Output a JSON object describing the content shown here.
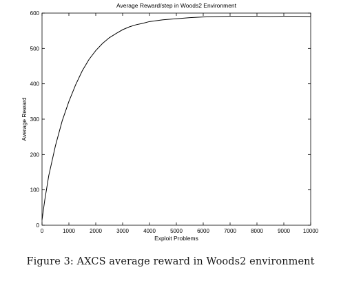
{
  "chart_data": {
    "type": "line",
    "title": "Average Reward/step in Woods2 Environment",
    "xlabel": "Exploit Problems",
    "ylabel": "Average Reward",
    "xlim": [
      0,
      10000
    ],
    "ylim": [
      0,
      600
    ],
    "xticks": [
      0,
      1000,
      2000,
      3000,
      4000,
      5000,
      6000,
      7000,
      8000,
      9000,
      10000
    ],
    "yticks": [
      0,
      100,
      200,
      300,
      400,
      500,
      600
    ],
    "grid": false,
    "legend": "none",
    "line_color": "#000000",
    "series": [
      {
        "x": [
          0,
          100,
          250,
          500,
          750,
          1000,
          1250,
          1500,
          1750,
          2000,
          2250,
          2500,
          2750,
          3000,
          3250,
          3500,
          3750,
          4000,
          4500,
          5000,
          5500,
          6000,
          6500,
          7000,
          7500,
          8000,
          8500,
          9000,
          9500,
          10000
        ],
        "y": [
          15,
          70,
          140,
          225,
          295,
          350,
          397,
          437,
          469,
          494,
          514,
          530,
          542,
          553,
          561,
          567,
          571,
          576,
          581,
          584,
          587,
          589,
          590,
          591,
          591,
          591,
          590,
          591,
          591,
          590
        ]
      }
    ]
  },
  "caption": "Figure 3: AXCS average reward in Woods2 environment"
}
